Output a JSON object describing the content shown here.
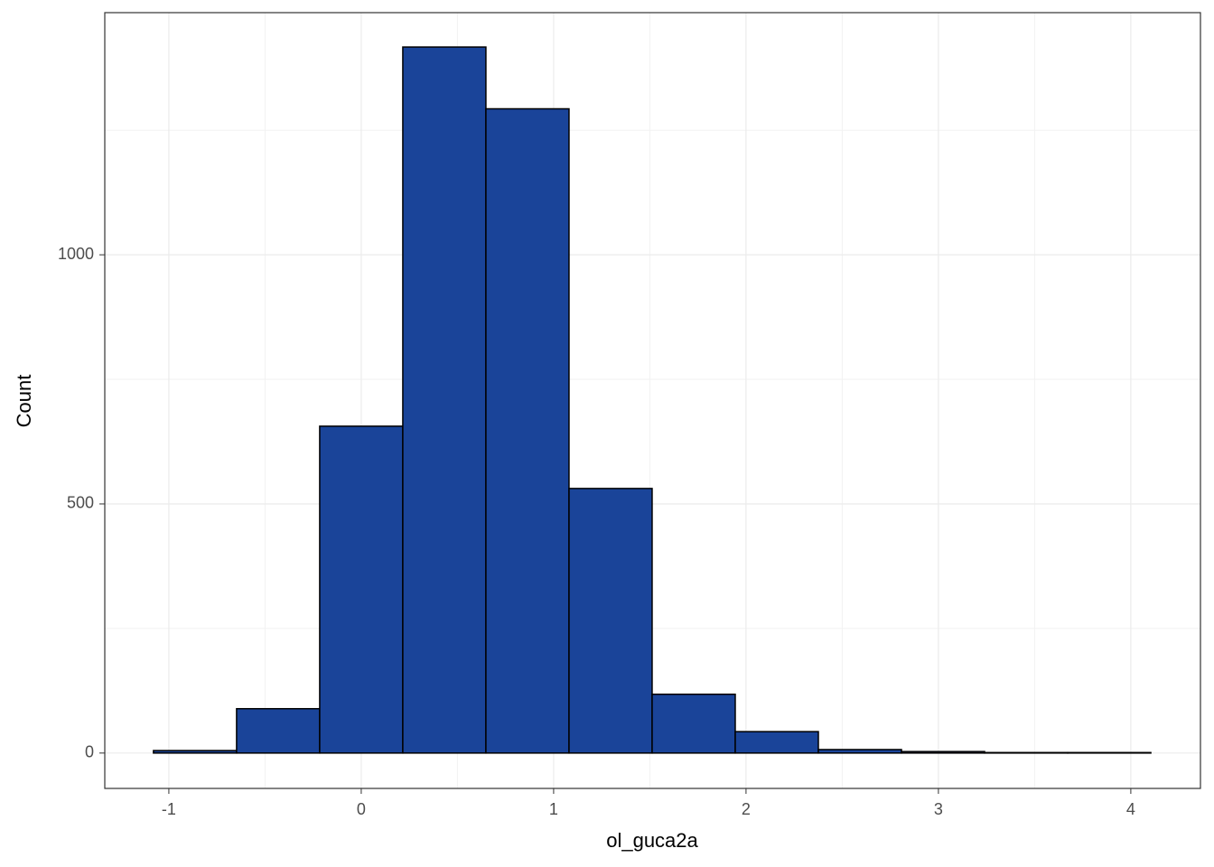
{
  "chart_data": {
    "type": "histogram",
    "x_label": "ol_guca2a",
    "y_label": "Count",
    "bins": [
      -1.08,
      -0.648,
      -0.216,
      0.216,
      0.648,
      1.08,
      1.512,
      1.944,
      2.376,
      2.808,
      3.24,
      3.672,
      4.104
    ],
    "values": [
      5,
      89,
      656,
      1417,
      1293,
      531,
      118,
      43,
      7,
      3,
      1,
      1
    ],
    "color": "#1a4499",
    "xlim": [
      -1.333,
      4.362
    ],
    "xticks": [
      -1,
      0,
      1,
      2,
      3,
      4
    ],
    "ylim": [
      -71,
      1486
    ],
    "yticks": [
      0,
      500,
      1000
    ],
    "grid": true
  }
}
